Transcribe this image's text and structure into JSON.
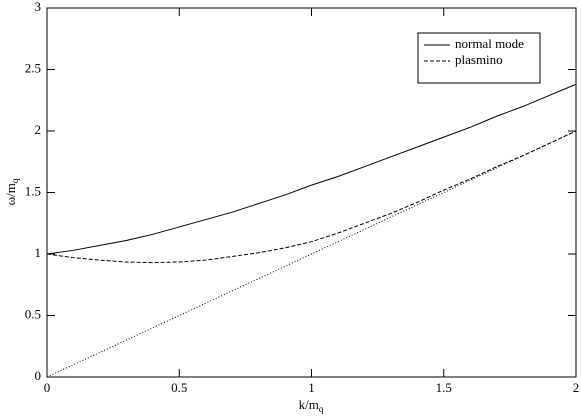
{
  "chart_data": {
    "type": "line",
    "xlabel": {
      "text": "k/m",
      "subscript": "q"
    },
    "ylabel": {
      "text": "ω/m",
      "subscript": "q"
    },
    "x": [
      0,
      0.1,
      0.2,
      0.3,
      0.4,
      0.5,
      0.6,
      0.7,
      0.8,
      0.9,
      1.0,
      1.1,
      1.2,
      1.3,
      1.4,
      1.5,
      1.6,
      1.7,
      1.8,
      1.9,
      2.0
    ],
    "series": [
      {
        "name": "normal mode",
        "color": "#000000",
        "dash": "solid",
        "values": [
          1.0,
          1.03,
          1.07,
          1.11,
          1.16,
          1.22,
          1.28,
          1.34,
          1.41,
          1.48,
          1.56,
          1.63,
          1.71,
          1.79,
          1.87,
          1.95,
          2.03,
          2.12,
          2.2,
          2.29,
          2.38
        ]
      },
      {
        "name": "plasmino",
        "color": "#000000",
        "dash": "dashed",
        "values": [
          1.0,
          0.97,
          0.95,
          0.935,
          0.93,
          0.935,
          0.95,
          0.98,
          1.01,
          1.05,
          1.1,
          1.17,
          1.25,
          1.33,
          1.42,
          1.52,
          1.61,
          1.71,
          1.8,
          1.9,
          2.0
        ]
      },
      {
        "color": "#000000",
        "dash": "dotted",
        "values": [
          0,
          0.1,
          0.2,
          0.3,
          0.4,
          0.5,
          0.6,
          0.7,
          0.8,
          0.9,
          1.0,
          1.1,
          1.2,
          1.3,
          1.4,
          1.5,
          1.6,
          1.7,
          1.8,
          1.9,
          2.0
        ]
      }
    ],
    "xlim": [
      0,
      2
    ],
    "xticks": [
      0,
      0.5,
      1,
      1.5,
      2
    ],
    "ylim": [
      0,
      3
    ],
    "yticks": [
      0,
      0.5,
      1,
      1.5,
      2,
      2.5,
      3
    ],
    "legend": "upper right",
    "grid": false
  }
}
